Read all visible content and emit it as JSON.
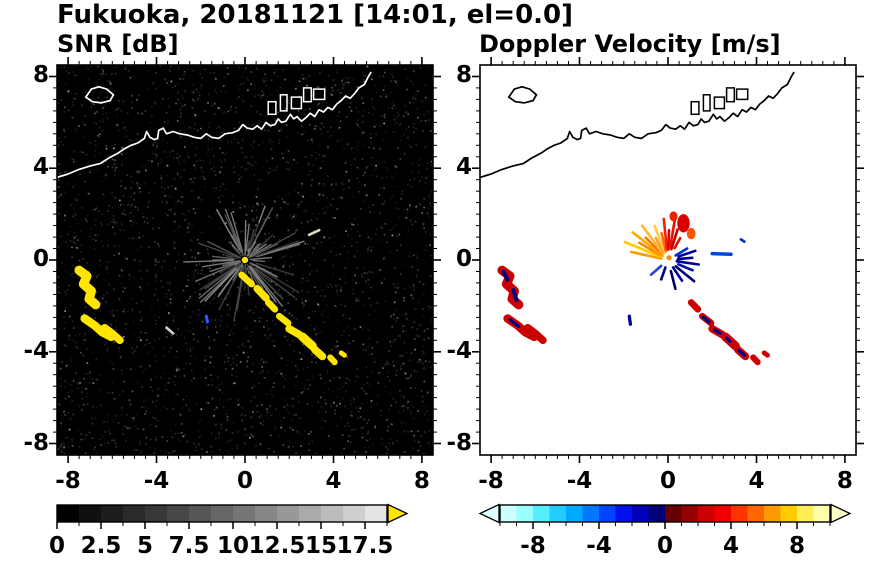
{
  "title": "Fukuoka, 20181121 [14:01, el=0.0]",
  "panels": [
    {
      "id": "snr",
      "title": "SNR [dB]"
    },
    {
      "id": "velocity",
      "title": "Doppler Velocity [m/s]"
    }
  ],
  "chart_data": {
    "type": "heatmap",
    "title": "Fukuoka, 20181121 [14:01, el=0.0]",
    "site": "Fukuoka",
    "date": "20181121",
    "time": "14:01",
    "elevation": "0.0",
    "axes": {
      "xlim": [
        -8.5,
        8.5
      ],
      "ylim": [
        -8.5,
        8.5
      ],
      "xticks": [
        -8,
        -4,
        0,
        4,
        8
      ],
      "yticks": [
        8,
        4,
        0,
        -4,
        -8
      ],
      "minor_step": 0.5
    },
    "colorbars": [
      {
        "title": "SNR [dB]",
        "range": [
          0,
          18.75
        ],
        "tick_labels": [
          "0",
          "2.5",
          "5",
          "7.5",
          "10",
          "12.5",
          "15",
          "17.5"
        ],
        "tick_values": [
          0,
          2.5,
          5,
          7.5,
          10,
          12.5,
          15,
          17.5
        ],
        "cells": [
          "#000000",
          "#101010",
          "#1d1d1d",
          "#2a2a2a",
          "#383838",
          "#474747",
          "#565656",
          "#666666",
          "#767676",
          "#878787",
          "#989898",
          "#aaaaaa",
          "#bcbcbc",
          "#cfcfcf",
          "#e4e4e4"
        ],
        "over_arrow": "#ffe600"
      },
      {
        "title": "Doppler Velocity [m/s]",
        "range": [
          -10,
          10
        ],
        "tick_labels": [
          "-8",
          "-4",
          "0",
          "4",
          "8"
        ],
        "tick_values": [
          -8,
          -4,
          0,
          4,
          8
        ],
        "cells": [
          "#ccffff",
          "#99ffff",
          "#55eeff",
          "#22ccff",
          "#00aaff",
          "#0077ff",
          "#0044ff",
          "#0011ee",
          "#0000bb",
          "#000077",
          "#660000",
          "#990000",
          "#cc0000",
          "#ee0000",
          "#ff3300",
          "#ff6600",
          "#ff9900",
          "#ffcc00",
          "#ffee55",
          "#ffffaa"
        ],
        "under_arrow": "#ddffff",
        "over_arrow": "#ffffcc"
      }
    ],
    "coastline": [
      [
        -8.5,
        3.6
      ],
      [
        -8.0,
        3.75
      ],
      [
        -7.5,
        3.95
      ],
      [
        -7.0,
        4.1
      ],
      [
        -6.55,
        4.2
      ],
      [
        -6.15,
        4.45
      ],
      [
        -5.75,
        4.65
      ],
      [
        -5.45,
        4.85
      ],
      [
        -5.15,
        5.0
      ],
      [
        -4.85,
        5.1
      ],
      [
        -4.55,
        5.3
      ],
      [
        -4.45,
        5.6
      ],
      [
        -4.3,
        5.35
      ],
      [
        -4.1,
        5.25
      ],
      [
        -3.95,
        5.3
      ],
      [
        -3.9,
        5.65
      ],
      [
        -3.7,
        5.75
      ],
      [
        -3.55,
        5.5
      ],
      [
        -3.25,
        5.6
      ],
      [
        -2.95,
        5.5
      ],
      [
        -2.6,
        5.45
      ],
      [
        -2.3,
        5.35
      ],
      [
        -2.0,
        5.3
      ],
      [
        -1.75,
        5.5
      ],
      [
        -1.5,
        5.35
      ],
      [
        -1.2,
        5.3
      ],
      [
        -0.9,
        5.5
      ],
      [
        -0.55,
        5.55
      ],
      [
        -0.3,
        5.65
      ],
      [
        -0.1,
        5.9
      ],
      [
        0.1,
        5.75
      ],
      [
        0.35,
        5.7
      ],
      [
        0.55,
        5.85
      ],
      [
        0.75,
        5.7
      ],
      [
        0.95,
        6.0
      ],
      [
        1.15,
        5.85
      ],
      [
        1.35,
        5.9
      ],
      [
        1.5,
        6.15
      ],
      [
        1.65,
        6.0
      ],
      [
        1.85,
        6.05
      ],
      [
        2.05,
        6.35
      ],
      [
        2.2,
        6.15
      ],
      [
        2.35,
        6.25
      ],
      [
        2.55,
        6.05
      ],
      [
        2.75,
        6.2
      ],
      [
        2.95,
        6.4
      ],
      [
        3.15,
        6.25
      ],
      [
        3.35,
        6.55
      ],
      [
        3.55,
        6.45
      ],
      [
        3.75,
        6.65
      ],
      [
        3.95,
        6.55
      ],
      [
        4.15,
        6.8
      ],
      [
        4.35,
        6.95
      ],
      [
        4.55,
        7.15
      ],
      [
        4.75,
        7.05
      ],
      [
        4.95,
        7.25
      ],
      [
        5.15,
        7.5
      ],
      [
        5.4,
        7.65
      ],
      [
        5.55,
        7.95
      ],
      [
        5.7,
        8.2
      ]
    ],
    "island": [
      [
        -7.2,
        7.1
      ],
      [
        -6.95,
        7.45
      ],
      [
        -6.6,
        7.55
      ],
      [
        -6.25,
        7.45
      ],
      [
        -5.95,
        7.2
      ],
      [
        -6.1,
        6.95
      ],
      [
        -6.5,
        6.85
      ],
      [
        -6.9,
        6.9
      ]
    ],
    "port_structures": [
      {
        "x": 1.05,
        "y": 6.35,
        "w": 0.35,
        "h": 0.55
      },
      {
        "x": 1.6,
        "y": 6.5,
        "w": 0.3,
        "h": 0.7
      },
      {
        "x": 2.1,
        "y": 6.6,
        "w": 0.45,
        "h": 0.5
      },
      {
        "x": 2.65,
        "y": 6.9,
        "w": 0.35,
        "h": 0.6
      },
      {
        "x": 3.1,
        "y": 7.0,
        "w": 0.5,
        "h": 0.45
      }
    ],
    "snr_panel": {
      "background": "#000000",
      "coast_color": "#ffffff",
      "echo_color": "#ffe600",
      "center_color": "#ffe600",
      "noise_seed": 20181121,
      "streak_seed": 1401,
      "echoes_west": [
        {
          "pts": [
            [
              -7.5,
              -0.45
            ],
            [
              -7.15,
              -0.7
            ],
            [
              -7.3,
              -1.05
            ],
            [
              -6.95,
              -1.35
            ],
            [
              -7.05,
              -1.7
            ],
            [
              -6.75,
              -1.95
            ]
          ],
          "w": 0.42
        },
        {
          "pts": [
            [
              -7.25,
              -2.55
            ],
            [
              -6.8,
              -2.85
            ],
            [
              -6.45,
              -3.15
            ],
            [
              -6.05,
              -3.35
            ]
          ],
          "w": 0.38
        },
        {
          "pts": [
            [
              -6.35,
              -2.95
            ],
            [
              -6.0,
              -3.2
            ],
            [
              -5.65,
              -3.5
            ]
          ],
          "w": 0.34
        }
      ],
      "rainband": [
        {
          "pts": [
            [
              -0.15,
              -0.65
            ],
            [
              0.3,
              -1.05
            ]
          ],
          "w": 0.3
        },
        {
          "pts": [
            [
              0.55,
              -1.25
            ],
            [
              0.95,
              -1.65
            ]
          ],
          "w": 0.34
        },
        {
          "pts": [
            [
              1.05,
              -1.85
            ],
            [
              1.35,
              -2.15
            ]
          ],
          "w": 0.3
        },
        {
          "pts": [
            [
              1.55,
              -2.45
            ],
            [
              1.95,
              -2.75
            ]
          ],
          "w": 0.3
        },
        {
          "pts": [
            [
              2.0,
              -3.0
            ],
            [
              2.45,
              -3.25
            ]
          ],
          "w": 0.35
        },
        {
          "pts": [
            [
              2.6,
              -3.35
            ],
            [
              3.05,
              -3.75
            ]
          ],
          "w": 0.4
        },
        {
          "pts": [
            [
              3.15,
              -3.9
            ],
            [
              3.5,
              -4.2
            ]
          ],
          "w": 0.35
        },
        {
          "pts": [
            [
              3.85,
              -4.25
            ],
            [
              4.05,
              -4.45
            ]
          ],
          "w": 0.28
        },
        {
          "pts": [
            [
              4.35,
              -4.05
            ],
            [
              4.5,
              -4.15
            ]
          ],
          "w": 0.22
        }
      ],
      "extras": [
        {
          "pts": [
            [
              -3.55,
              -2.95
            ],
            [
              -3.25,
              -3.2
            ]
          ],
          "w": 0.12,
          "color": "#cccccc"
        },
        {
          "pts": [
            [
              2.9,
              1.1
            ],
            [
              3.35,
              1.3
            ]
          ],
          "w": 0.12,
          "color": "#ddddbb"
        },
        {
          "pts": [
            [
              -1.75,
              -2.45
            ],
            [
              -1.7,
              -2.7
            ]
          ],
          "w": 0.14,
          "color": "#3355ff"
        }
      ]
    },
    "velocity_panel": {
      "background": "#ffffff",
      "coast_color": "#000000",
      "pos_color": "#cc0000",
      "neg_color": "#000080",
      "streaks": [
        {
          "a": 168,
          "r0": 0.3,
          "r1": 1.7,
          "c": "#ff9900"
        },
        {
          "a": 158,
          "r0": 0.35,
          "r1": 2.1,
          "c": "#ffcc00"
        },
        {
          "a": 150,
          "r0": 0.4,
          "r1": 1.5,
          "c": "#ff8800"
        },
        {
          "a": 143,
          "r0": 0.3,
          "r1": 2.0,
          "c": "#ffaa00"
        },
        {
          "a": 136,
          "r0": 0.4,
          "r1": 1.4,
          "c": "#ff7700"
        },
        {
          "a": 128,
          "r0": 0.35,
          "r1": 1.9,
          "c": "#ffbb33"
        },
        {
          "a": 120,
          "r0": 0.4,
          "r1": 1.1,
          "c": "#ff9933"
        },
        {
          "a": 112,
          "r0": 0.35,
          "r1": 1.6,
          "c": "#ffcc44"
        },
        {
          "a": 104,
          "r0": 0.4,
          "r1": 1.2,
          "c": "#ff6600"
        },
        {
          "a": 96,
          "r0": 0.5,
          "r1": 1.8,
          "c": "#ee2200"
        },
        {
          "a": 88,
          "r0": 0.45,
          "r1": 1.3,
          "c": "#dd0000"
        },
        {
          "a": 80,
          "r0": 0.55,
          "r1": 1.9,
          "c": "#ee1100"
        },
        {
          "a": 72,
          "r0": 0.5,
          "r1": 1.4,
          "c": "#cc0000"
        },
        {
          "a": 60,
          "r0": 0.6,
          "r1": 1.1,
          "c": "#dd1100"
        },
        {
          "a": 30,
          "r0": 0.4,
          "r1": 1.0,
          "c": "#0033cc"
        },
        {
          "a": 18,
          "r0": 0.5,
          "r1": 1.3,
          "c": "#0000aa"
        },
        {
          "a": 5,
          "r0": 0.45,
          "r1": 1.1,
          "c": "#000088"
        },
        {
          "a": -8,
          "r0": 0.4,
          "r1": 1.4,
          "c": "#000099"
        },
        {
          "a": -22,
          "r0": 0.5,
          "r1": 1.2,
          "c": "#0011aa"
        },
        {
          "a": -38,
          "r0": 0.45,
          "r1": 1.5,
          "c": "#000077"
        },
        {
          "a": -55,
          "r0": 0.4,
          "r1": 1.1,
          "c": "#000099"
        },
        {
          "a": -75,
          "r0": 0.5,
          "r1": 1.3,
          "c": "#000066"
        },
        {
          "a": -110,
          "r0": 0.35,
          "r1": 0.9,
          "c": "#000088"
        },
        {
          "a": -140,
          "r0": 0.4,
          "r1": 1.0,
          "c": "#2244dd"
        }
      ],
      "red_blobs": [
        {
          "x": 0.7,
          "y": 1.6,
          "rx": 0.28,
          "ry": 0.4,
          "c": "#dd0000"
        },
        {
          "x": 1.05,
          "y": 1.15,
          "rx": 0.2,
          "ry": 0.25,
          "c": "#ff5500"
        },
        {
          "x": 0.25,
          "y": 1.9,
          "rx": 0.18,
          "ry": 0.22,
          "c": "#ee2200"
        }
      ],
      "overlays": [
        {
          "pts": [
            [
              -7.45,
              -0.5
            ],
            [
              -7.25,
              -0.85
            ]
          ],
          "w": 0.18
        },
        {
          "pts": [
            [
              -7.0,
              -1.3
            ],
            [
              -6.85,
              -1.75
            ]
          ],
          "w": 0.18
        },
        {
          "pts": [
            [
              -7.15,
              -2.6
            ],
            [
              -6.75,
              -2.9
            ]
          ],
          "w": 0.15
        },
        {
          "pts": [
            [
              1.6,
              -2.5
            ],
            [
              1.85,
              -2.7
            ]
          ],
          "w": 0.16
        },
        {
          "pts": [
            [
              2.1,
              -3.05
            ],
            [
              2.35,
              -3.2
            ]
          ],
          "w": 0.15
        },
        {
          "pts": [
            [
              3.2,
              -3.95
            ],
            [
              3.45,
              -4.15
            ]
          ],
          "w": 0.16
        },
        {
          "pts": [
            [
              2.65,
              -3.4
            ],
            [
              2.8,
              -3.55
            ]
          ],
          "w": 0.14
        }
      ],
      "extras": [
        {
          "pts": [
            [
              2.0,
              0.28
            ],
            [
              2.85,
              0.25
            ]
          ],
          "w": 0.16,
          "color": "#0044dd"
        },
        {
          "pts": [
            [
              -1.75,
              -2.45
            ],
            [
              -1.7,
              -2.8
            ]
          ],
          "w": 0.15,
          "color": "#000099"
        },
        {
          "pts": [
            [
              3.3,
              0.9
            ],
            [
              3.45,
              0.8
            ]
          ],
          "w": 0.12,
          "color": "#0033bb"
        }
      ]
    }
  }
}
